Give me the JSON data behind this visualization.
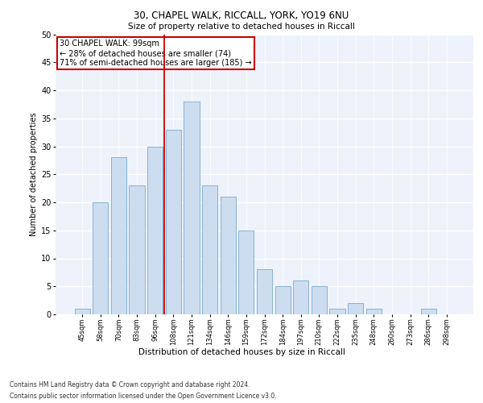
{
  "title_line1": "30, CHAPEL WALK, RICCALL, YORK, YO19 6NU",
  "title_line2": "Size of property relative to detached houses in Riccall",
  "xlabel": "Distribution of detached houses by size in Riccall",
  "ylabel": "Number of detached properties",
  "categories": [
    "45sqm",
    "58sqm",
    "70sqm",
    "83sqm",
    "96sqm",
    "108sqm",
    "121sqm",
    "134sqm",
    "146sqm",
    "159sqm",
    "172sqm",
    "184sqm",
    "197sqm",
    "210sqm",
    "222sqm",
    "235sqm",
    "248sqm",
    "260sqm",
    "273sqm",
    "286sqm",
    "298sqm"
  ],
  "values": [
    1,
    20,
    28,
    23,
    30,
    33,
    38,
    23,
    21,
    15,
    8,
    5,
    6,
    5,
    1,
    2,
    1,
    0,
    0,
    1,
    0
  ],
  "bar_color": "#ccddf0",
  "bar_edge_color": "#7aaad0",
  "property_label": "30 CHAPEL WALK: 99sqm",
  "annotation_line1": "← 28% of detached houses are smaller (74)",
  "annotation_line2": "71% of semi-detached houses are larger (185) →",
  "vline_bin_index": 4,
  "vline_color": "#cc0000",
  "annotation_box_color": "#cc0000",
  "ylim": [
    0,
    50
  ],
  "yticks": [
    0,
    5,
    10,
    15,
    20,
    25,
    30,
    35,
    40,
    45,
    50
  ],
  "bg_color": "#eef2fb",
  "grid_color": "#ffffff",
  "footer_line1": "Contains HM Land Registry data © Crown copyright and database right 2024.",
  "footer_line2": "Contains public sector information licensed under the Open Government Licence v3.0."
}
